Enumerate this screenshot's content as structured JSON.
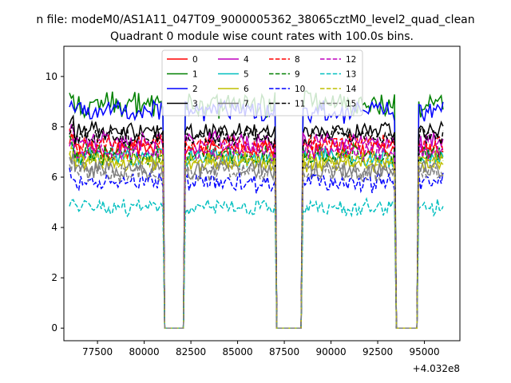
{
  "chart_data": {
    "type": "line",
    "suptitle": "n file: modeM0/AS1A11_047T09_9000005362_38065cztM0_level2_quad_clean",
    "title": "Quadrant 0 module wise count rates with 100.0s bins.",
    "xlabel": "",
    "ylabel": "",
    "x_offset_label": "+4.032e8",
    "x_offset": 403200000,
    "xlim": [
      75700,
      96900
    ],
    "ylim": [
      -0.5,
      11.2
    ],
    "x_ticks": [
      77500,
      80000,
      82500,
      85000,
      87500,
      90000,
      92500,
      95000
    ],
    "x_tick_labels": [
      "77500",
      "80000",
      "82500",
      "85000",
      "87500",
      "90000",
      "92500",
      "95000"
    ],
    "y_ticks": [
      0,
      2,
      4,
      6,
      8,
      10
    ],
    "y_tick_labels": [
      "0",
      "2",
      "4",
      "6",
      "8",
      "10"
    ],
    "bin_seconds": 100,
    "time_start": 76000,
    "time_end": 96000,
    "active_intervals": [
      [
        76000,
        80900
      ],
      [
        82300,
        86900
      ],
      [
        88600,
        93300
      ],
      [
        94800,
        96000
      ]
    ],
    "legend": {
      "location": "top-center",
      "columns": 4
    },
    "series": [
      {
        "name": "0",
        "color": "#ff0000",
        "style": "solid",
        "mean": 7.1,
        "noise": 0.3
      },
      {
        "name": "1",
        "color": "#008000",
        "style": "solid",
        "mean": 8.9,
        "noise": 0.4
      },
      {
        "name": "2",
        "color": "#0000ff",
        "style": "solid",
        "mean": 8.6,
        "noise": 0.35
      },
      {
        "name": "3",
        "color": "#000000",
        "style": "solid",
        "mean": 7.8,
        "noise": 0.3
      },
      {
        "name": "4",
        "color": "#bf00bf",
        "style": "solid",
        "mean": 7.4,
        "noise": 0.3
      },
      {
        "name": "5",
        "color": "#00bfbf",
        "style": "solid",
        "mean": 6.8,
        "noise": 0.3
      },
      {
        "name": "6",
        "color": "#bfbf00",
        "style": "solid",
        "mean": 6.6,
        "noise": 0.3
      },
      {
        "name": "7",
        "color": "#808080",
        "style": "solid",
        "mean": 6.3,
        "noise": 0.3
      },
      {
        "name": "8",
        "color": "#ff0000",
        "style": "dashed",
        "mean": 7.3,
        "noise": 0.3
      },
      {
        "name": "9",
        "color": "#008000",
        "style": "dashed",
        "mean": 6.9,
        "noise": 0.3
      },
      {
        "name": "10",
        "color": "#0000ff",
        "style": "dashed",
        "mean": 5.8,
        "noise": 0.3
      },
      {
        "name": "11",
        "color": "#000000",
        "style": "dashed",
        "mean": 7.6,
        "noise": 0.3
      },
      {
        "name": "12",
        "color": "#bf00bf",
        "style": "dashed",
        "mean": 7.0,
        "noise": 0.3
      },
      {
        "name": "13",
        "color": "#00bfbf",
        "style": "dashed",
        "mean": 4.8,
        "noise": 0.25
      },
      {
        "name": "14",
        "color": "#bfbf00",
        "style": "dashed",
        "mean": 6.7,
        "noise": 0.3
      },
      {
        "name": "15",
        "color": "#808080",
        "style": "dashed",
        "mean": 6.2,
        "noise": 0.3
      }
    ]
  }
}
